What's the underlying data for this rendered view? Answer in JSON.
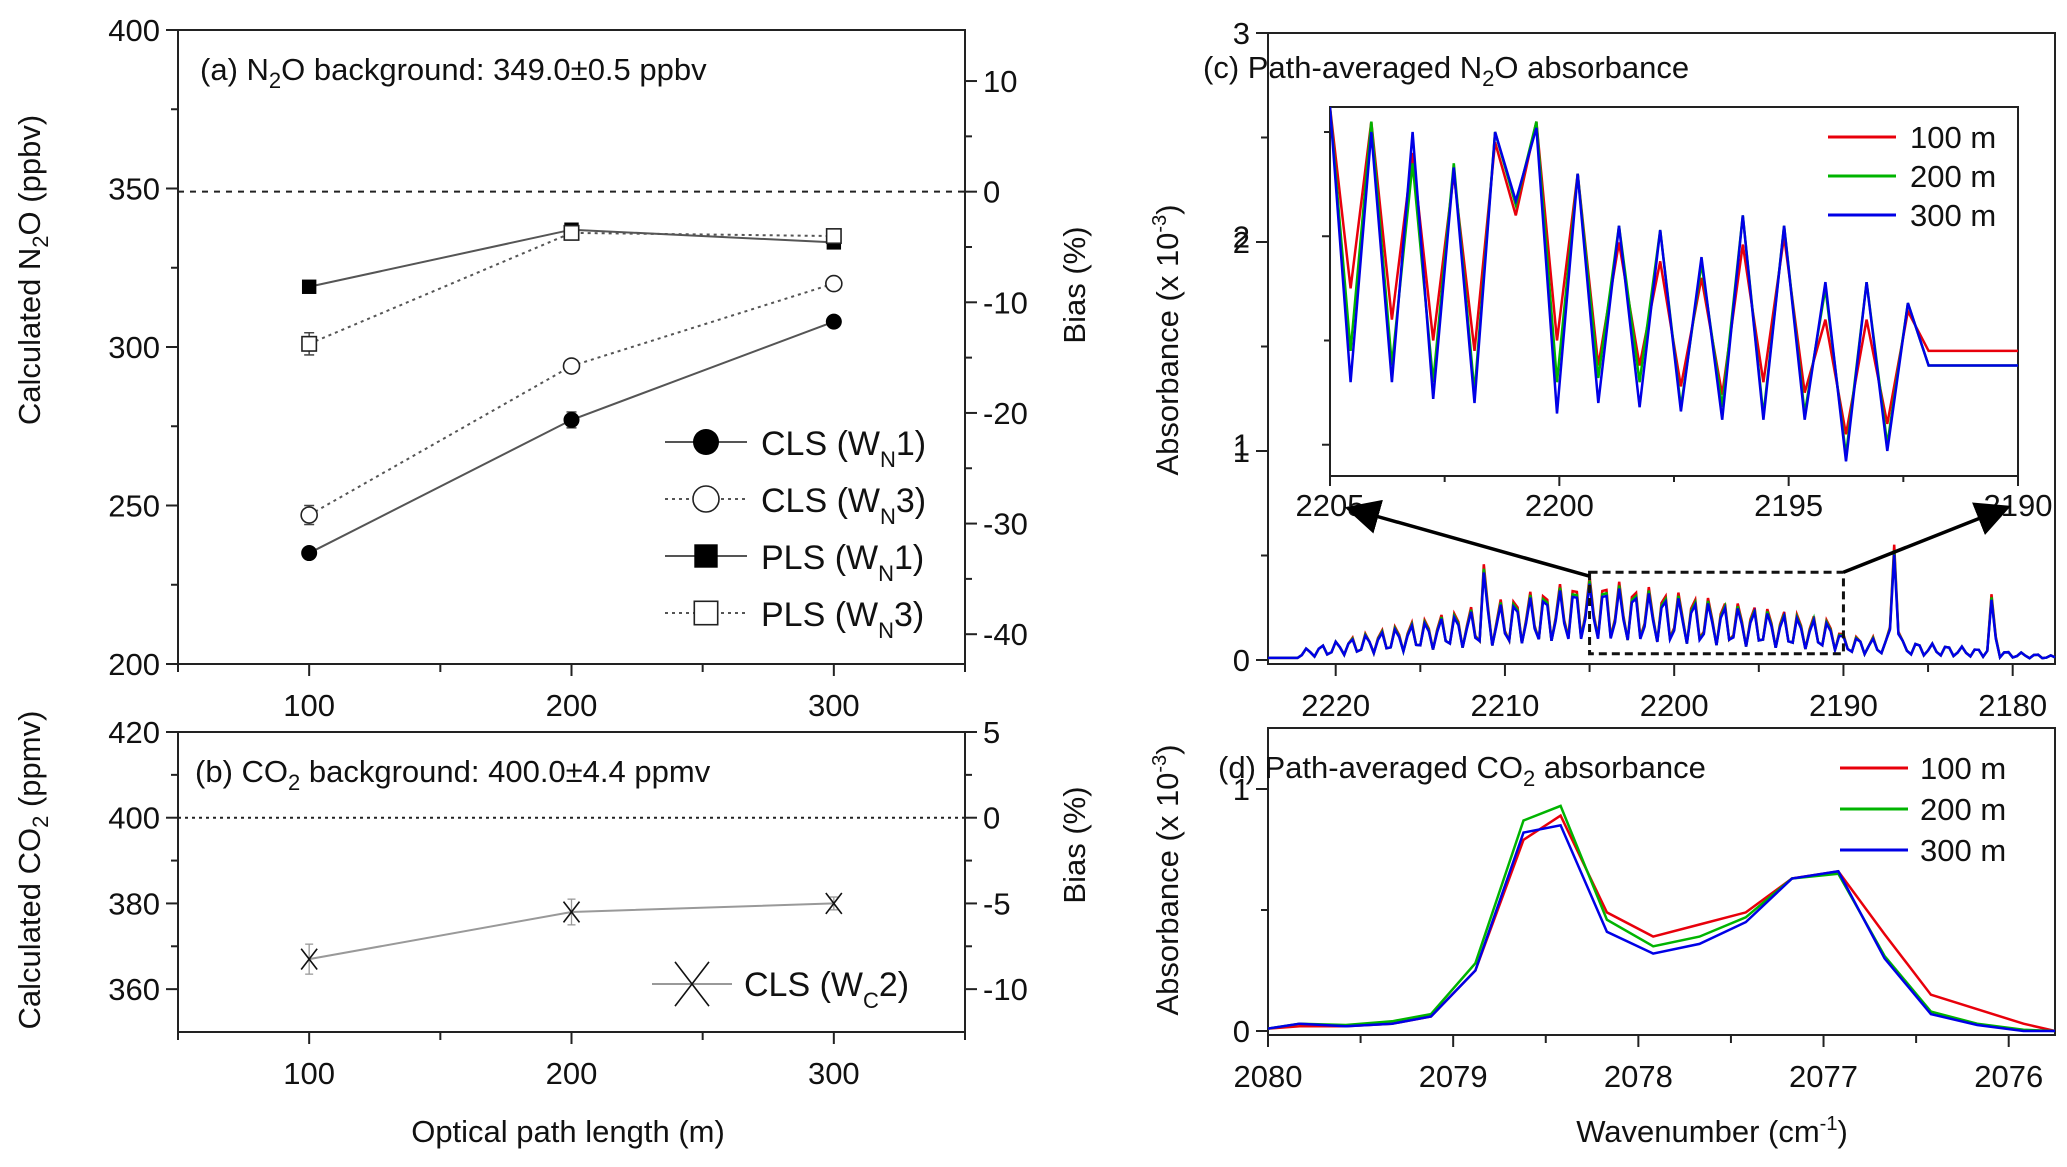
{
  "figure": {
    "shared_xlabel_ab": "Optical path length (m)",
    "shared_xlabel_cd": "Wavenumber (cm⁻¹)"
  },
  "chart_data": [
    {
      "id": "a",
      "type": "line",
      "title": "(a) N2O background: 349.0±0.5 ppbv",
      "title_parts": {
        "prefix": "(a) N",
        "sub": "2",
        "suffix": "O background: 349.0±0.5 ppbv"
      },
      "xlabel": "",
      "ylabel": "Calculated N2O (ppbv)",
      "ylabel_parts": {
        "prefix": "Calculated N",
        "sub": "2",
        "suffix": "O (ppbv)"
      },
      "y2label": "Bias (%)",
      "x": [
        100,
        200,
        300
      ],
      "xlim": [
        50,
        350
      ],
      "xticks": [
        100,
        200,
        300
      ],
      "ylim": [
        200,
        400
      ],
      "yticks": [
        200,
        250,
        300,
        350,
        400
      ],
      "y2lim": [
        -42.7,
        14.6
      ],
      "y2ticks": [
        10,
        0,
        -10,
        -20,
        -30,
        -40
      ],
      "reference_line": {
        "y": 349.0,
        "style": "dashed"
      },
      "grid": false,
      "legend_position": "lower-right",
      "series": [
        {
          "name": "CLS (WN1)",
          "label_main": "CLS (W",
          "label_sub": "N",
          "label_tail": "1)",
          "marker": "filled-circle",
          "line": "solid",
          "values": [
            235,
            277,
            308
          ],
          "errors": [
            1.0,
            2.5,
            1.0
          ]
        },
        {
          "name": "CLS (WN3)",
          "label_main": "CLS (W",
          "label_sub": "N",
          "label_tail": "3)",
          "marker": "open-circle",
          "line": "dotted",
          "values": [
            247,
            294,
            320
          ],
          "errors": [
            3.0,
            1.5,
            1.5
          ]
        },
        {
          "name": "PLS (WN1)",
          "label_main": "PLS (W",
          "label_sub": "N",
          "label_tail": "1)",
          "marker": "filled-square",
          "line": "solid",
          "values": [
            319,
            337,
            333
          ],
          "errors": [
            0.5,
            1.0,
            1.0
          ]
        },
        {
          "name": "PLS (WN3)",
          "label_main": "PLS (W",
          "label_sub": "N",
          "label_tail": "3)",
          "marker": "open-square",
          "line": "dotted",
          "values": [
            301,
            336,
            335
          ],
          "errors": [
            3.5,
            2.0,
            2.0
          ]
        }
      ]
    },
    {
      "id": "b",
      "type": "line",
      "title": "(b) CO2 background: 400.0±4.4 ppmv",
      "title_parts": {
        "prefix": "(b) CO",
        "sub": "2",
        "suffix": " background: 400.0±4.4 ppmv"
      },
      "xlabel": "Optical path length (m)",
      "ylabel": "Calculated CO2 (ppmv)",
      "ylabel_parts": {
        "prefix": "Calculated CO",
        "sub": "2",
        "suffix": " (ppmv)"
      },
      "y2label": "Bias (%)",
      "x": [
        100,
        200,
        300
      ],
      "xlim": [
        50,
        350
      ],
      "xticks": [
        100,
        200,
        300
      ],
      "ylim": [
        350,
        420
      ],
      "yticks": [
        360,
        380,
        400,
        420
      ],
      "y2lim": [
        -12.5,
        5
      ],
      "y2ticks": [
        5,
        0,
        -5,
        -10
      ],
      "reference_line": {
        "y": 400.0,
        "style": "dotted"
      },
      "grid": false,
      "legend_position": "lower-right",
      "series": [
        {
          "name": "CLS (WC2)",
          "label_main": "CLS (W",
          "label_sub": "C",
          "label_tail": "2)",
          "marker": "x",
          "line": "solid-gray",
          "values": [
            367,
            378,
            380
          ],
          "errors": [
            3.5,
            3.0,
            1.5
          ]
        }
      ]
    },
    {
      "id": "c",
      "type": "line",
      "title": "(c) Path-averaged N2O absorbance",
      "title_parts": {
        "prefix": "(c) Path-averaged N",
        "sub": "2",
        "suffix": "O absorbance"
      },
      "xlabel": "",
      "ylabel": "Absorbance (x 10-3)",
      "ylabel_parts": {
        "prefix": "Absorbance (x 10",
        "sup": "-3",
        "suffix": ")"
      },
      "xlim": [
        2224,
        2177.5
      ],
      "xticks": [
        2220,
        2210,
        2200,
        2190,
        2180
      ],
      "ylim": [
        0,
        3
      ],
      "yticks": [
        0,
        1,
        2,
        3
      ],
      "legend_position": "top-right",
      "zoom_box": {
        "x_from": 2205,
        "x_to": 2190,
        "y_from": 0.03,
        "y_to": 0.42
      },
      "inset": {
        "xlim": [
          2205,
          2190
        ],
        "xticks": [
          2205,
          2200,
          2195,
          2190
        ],
        "ylim": [
          0.85,
          2.62
        ],
        "series_names": [
          "100 m",
          "200 m",
          "300 m"
        ]
      },
      "series": [
        {
          "name": "100 m",
          "color": "#e8000b"
        },
        {
          "name": "200 m",
          "color": "#00b400"
        },
        {
          "name": "300 m",
          "color": "#0000e6"
        }
      ],
      "inset_x": [
        2205.0,
        2204.55,
        2204.1,
        2203.65,
        2203.2,
        2202.75,
        2202.3,
        2201.85,
        2201.4,
        2200.95,
        2200.5,
        2200.05,
        2199.6,
        2199.15,
        2198.7,
        2198.25,
        2197.8,
        2197.35,
        2196.9,
        2196.45,
        2196.0,
        2195.55,
        2195.1,
        2194.65,
        2194.2,
        2193.75,
        2193.3,
        2192.85,
        2192.4,
        2191.95,
        2191.5,
        2191.05,
        2190.6,
        2190.15,
        2190.0
      ],
      "inset_values": {
        "100 m": [
          2.62,
          1.75,
          2.55,
          1.6,
          2.4,
          1.5,
          2.3,
          1.45,
          2.45,
          2.1,
          2.55,
          1.5,
          2.3,
          1.38,
          1.97,
          1.38,
          1.88,
          1.28,
          1.8,
          1.24,
          1.96,
          1.3,
          2.0,
          1.25,
          1.6,
          1.05,
          1.6,
          1.1,
          1.64,
          1.45,
          1.45,
          1.45,
          1.45,
          1.45,
          1.45
        ],
        "200 m": [
          2.62,
          1.45,
          2.55,
          1.38,
          2.35,
          1.3,
          2.35,
          1.25,
          2.5,
          2.15,
          2.55,
          1.3,
          2.3,
          1.32,
          2.05,
          1.3,
          2.03,
          1.18,
          1.87,
          1.18,
          2.1,
          1.14,
          2.05,
          1.15,
          1.75,
          0.95,
          1.78,
          1.0,
          1.68,
          1.38,
          1.38,
          1.38,
          1.38,
          1.38,
          1.38
        ],
        "300 m": [
          2.62,
          1.3,
          2.5,
          1.3,
          2.5,
          1.22,
          2.33,
          1.2,
          2.5,
          2.17,
          2.52,
          1.15,
          2.3,
          1.2,
          2.05,
          1.18,
          2.03,
          1.16,
          1.9,
          1.12,
          2.1,
          1.12,
          2.05,
          1.12,
          1.78,
          0.92,
          1.78,
          0.97,
          1.68,
          1.38,
          1.38,
          1.38,
          1.38,
          1.38,
          1.38
        ]
      },
      "main_values_note": "full spectrum 2224-2177.5 cm-1 with overlapping 100/200/300 m traces; peaks up to ~0.55"
    },
    {
      "id": "d",
      "type": "line",
      "title": "(d) Path-averaged CO2 absorbance",
      "title_parts": {
        "prefix": "(d) Path-averaged CO",
        "sub": "2",
        "suffix": " absorbance"
      },
      "xlabel": "Wavenumber (cm-1)",
      "ylabel": "Absorbance (x 10-3)",
      "ylabel_parts": {
        "prefix": "Absorbance (x 10",
        "sup": "-3",
        "suffix": ")"
      },
      "xlim": [
        2080,
        2075.75
      ],
      "xticks": [
        2080,
        2079,
        2078,
        2077,
        2076
      ],
      "ylim": [
        -0.04,
        1.25
      ],
      "yticks": [
        0,
        1
      ],
      "legend_position": "top-right",
      "x": [
        2080.0,
        2079.83,
        2079.58,
        2079.33,
        2079.12,
        2078.88,
        2078.62,
        2078.42,
        2078.17,
        2077.92,
        2077.67,
        2077.42,
        2077.17,
        2076.92,
        2076.67,
        2076.42,
        2076.17,
        2075.92,
        2075.75
      ],
      "series": [
        {
          "name": "100 m",
          "color": "#e8000b",
          "values": [
            0.01,
            0.02,
            0.02,
            0.03,
            0.06,
            0.25,
            0.79,
            0.89,
            0.49,
            0.39,
            0.44,
            0.49,
            0.63,
            0.66,
            0.4,
            0.15,
            0.09,
            0.03,
            0.0
          ]
        },
        {
          "name": "200 m",
          "color": "#00b400",
          "values": [
            0.01,
            0.03,
            0.025,
            0.04,
            0.07,
            0.28,
            0.87,
            0.93,
            0.46,
            0.35,
            0.39,
            0.47,
            0.63,
            0.65,
            0.31,
            0.08,
            0.03,
            0.005,
            0.0
          ]
        },
        {
          "name": "300 m",
          "color": "#0000e6",
          "values": [
            0.01,
            0.03,
            0.02,
            0.03,
            0.06,
            0.25,
            0.82,
            0.85,
            0.41,
            0.32,
            0.36,
            0.45,
            0.63,
            0.66,
            0.3,
            0.07,
            0.025,
            0.0,
            0.0
          ]
        }
      ]
    }
  ]
}
